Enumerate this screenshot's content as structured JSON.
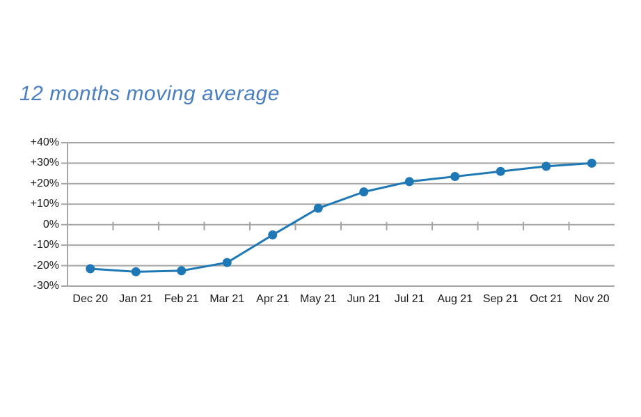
{
  "title": {
    "text": "12 months moving average",
    "color": "#4A7EBF"
  },
  "chart_data": {
    "type": "line",
    "title": "12 months moving average",
    "categories": [
      "Dec 20",
      "Jan 21",
      "Feb 21",
      "Mar 21",
      "Apr 21",
      "May 21",
      "Jun 21",
      "Jul 21",
      "Aug 21",
      "Sep 21",
      "Oct 21",
      "Nov 20"
    ],
    "series": [
      {
        "name": "12 months moving average",
        "values": [
          -21.5,
          -23,
          -22.5,
          -18.5,
          -5,
          8,
          16,
          21,
          23.5,
          26,
          28.5,
          30
        ]
      }
    ],
    "xlabel": "",
    "ylabel": "",
    "ylim": [
      -30,
      40
    ],
    "y_tick_step": 10,
    "y_tick_labels": [
      "+40%",
      "+30%",
      "+20%",
      "+10%",
      "0%",
      "-10%",
      "-20%",
      "-30%"
    ],
    "grid": true,
    "legend_position": "none",
    "line_color": "#1F78B6",
    "marker": "circle",
    "marker_color": "#1F78B6",
    "gridline_color": "#A5A5A5",
    "axis_color": "#A5A5A5",
    "tick_label_color": "#1a1a1a"
  }
}
